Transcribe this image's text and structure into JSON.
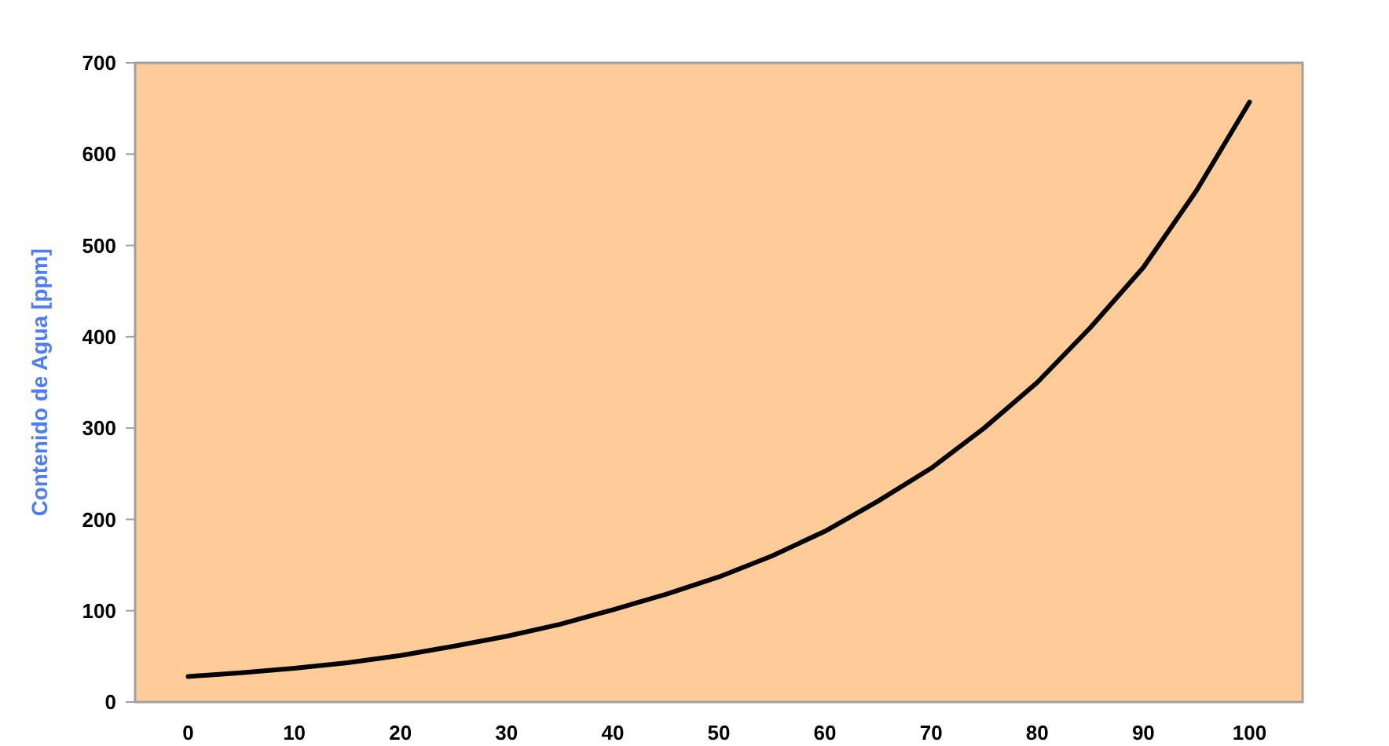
{
  "chart_data": {
    "type": "line",
    "ylabel": "Contenido de Agua [ppm]",
    "x": [
      0,
      5,
      10,
      15,
      20,
      25,
      30,
      35,
      40,
      45,
      50,
      55,
      60,
      65,
      70,
      75,
      80,
      85,
      90,
      95,
      100
    ],
    "series": [
      {
        "color": "#000000",
        "values": [
          28,
          32,
          37,
          43,
          51,
          61,
          72,
          85,
          101,
          118,
          137,
          160,
          187,
          220,
          256,
          300,
          350,
          410,
          476,
          560,
          657
        ]
      }
    ],
    "xlim": [
      -5,
      105
    ],
    "xticks": [
      0,
      10,
      20,
      30,
      40,
      50,
      60,
      70,
      80,
      90,
      100
    ],
    "ylim": [
      0,
      700
    ],
    "yticks": [
      0,
      100,
      200,
      300,
      400,
      500,
      600,
      700
    ],
    "grid": false,
    "marker": "none",
    "line_style": "solid"
  }
}
